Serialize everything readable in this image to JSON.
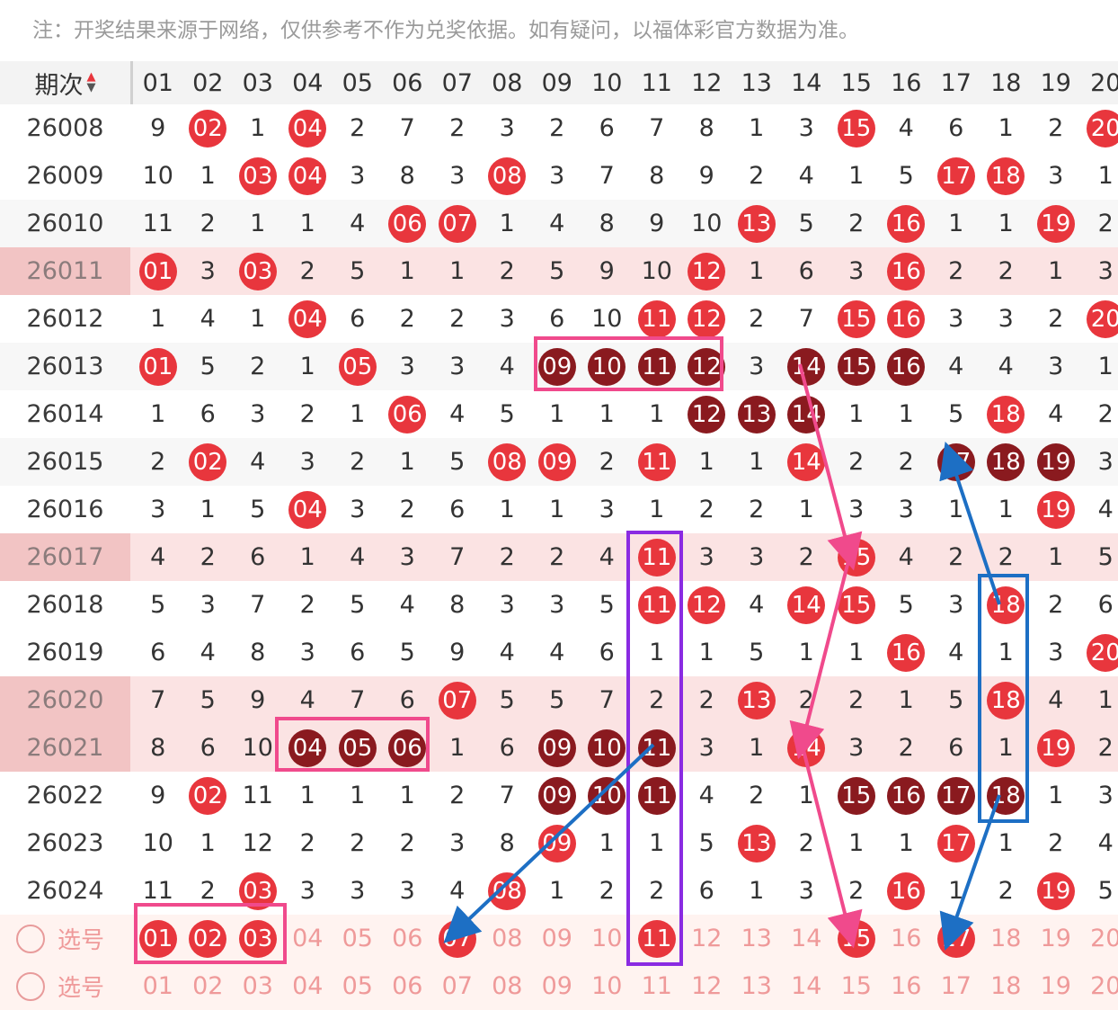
{
  "notice": "注：开奖结果来源于网络，仅供参考不作为兑奖依据。如有疑问，以福体彩官方数据为准。",
  "header": {
    "period_label": "期次",
    "sort_up": "▲",
    "sort_down": "▼",
    "columns": [
      "01",
      "02",
      "03",
      "04",
      "05",
      "06",
      "07",
      "08",
      "09",
      "10",
      "11",
      "12",
      "13",
      "14",
      "15",
      "16",
      "17",
      "18",
      "19",
      "20"
    ]
  },
  "rows": [
    {
      "period": "26008",
      "style": "white",
      "cells": [
        "9",
        "02*",
        "1",
        "04*",
        "2",
        "7",
        "2",
        "3",
        "2",
        "6",
        "7",
        "8",
        "1",
        "3",
        "15*",
        "4",
        "6",
        "1",
        "2",
        "20*"
      ]
    },
    {
      "period": "26009",
      "style": "white",
      "cells": [
        "10",
        "1",
        "03*",
        "04*",
        "3",
        "8",
        "3",
        "08*",
        "3",
        "7",
        "8",
        "9",
        "2",
        "4",
        "1",
        "5",
        "17*",
        "18*",
        "3",
        "1"
      ]
    },
    {
      "period": "26010",
      "style": "alt",
      "cells": [
        "11",
        "2",
        "1",
        "1",
        "4",
        "06*",
        "07*",
        "1",
        "4",
        "8",
        "9",
        "10",
        "13*",
        "5",
        "2",
        "16*",
        "1",
        "1",
        "19*",
        "2"
      ]
    },
    {
      "period": "26011",
      "style": "hl",
      "cells": [
        "01*",
        "3",
        "03*",
        "2",
        "5",
        "1",
        "1",
        "2",
        "5",
        "9",
        "10",
        "12*",
        "1",
        "6",
        "3",
        "16*",
        "2",
        "2",
        "1",
        "3"
      ]
    },
    {
      "period": "26012",
      "style": "white",
      "cells": [
        "1",
        "4",
        "1",
        "04*",
        "6",
        "2",
        "2",
        "3",
        "6",
        "10",
        "11*",
        "12*",
        "2",
        "7",
        "15*",
        "16*",
        "3",
        "3",
        "2",
        "20*"
      ]
    },
    {
      "period": "26013",
      "style": "alt",
      "cells": [
        "01*",
        "5",
        "2",
        "1",
        "05*",
        "3",
        "3",
        "4",
        "09#",
        "10#",
        "11#",
        "12#",
        "3",
        "14#",
        "15#",
        "16#",
        "4",
        "4",
        "3",
        "1"
      ]
    },
    {
      "period": "26014",
      "style": "white",
      "cells": [
        "1",
        "6",
        "3",
        "2",
        "1",
        "06*",
        "4",
        "5",
        "1",
        "1",
        "1",
        "12#",
        "13#",
        "14#",
        "1",
        "1",
        "5",
        "18*",
        "4",
        "2"
      ]
    },
    {
      "period": "26015",
      "style": "alt",
      "cells": [
        "2",
        "02*",
        "4",
        "3",
        "2",
        "1",
        "5",
        "08*",
        "09*",
        "2",
        "11*",
        "1",
        "1",
        "14*",
        "2",
        "2",
        "17#",
        "18#",
        "19#",
        "3"
      ]
    },
    {
      "period": "26016",
      "style": "white",
      "cells": [
        "3",
        "1",
        "5",
        "04*",
        "3",
        "2",
        "6",
        "1",
        "1",
        "3",
        "1",
        "2",
        "2",
        "1",
        "3",
        "3",
        "1",
        "1",
        "19*",
        "4"
      ]
    },
    {
      "period": "26017",
      "style": "hl",
      "cells": [
        "4",
        "2",
        "6",
        "1",
        "4",
        "3",
        "7",
        "2",
        "2",
        "4",
        "11*",
        "3",
        "3",
        "2",
        "15*",
        "4",
        "2",
        "2",
        "1",
        "5"
      ]
    },
    {
      "period": "26018",
      "style": "white",
      "cells": [
        "5",
        "3",
        "7",
        "2",
        "5",
        "4",
        "8",
        "3",
        "3",
        "5",
        "11*",
        "12*",
        "4",
        "14*",
        "15*",
        "5",
        "3",
        "18*",
        "2",
        "6"
      ]
    },
    {
      "period": "26019",
      "style": "white",
      "cells": [
        "6",
        "4",
        "8",
        "3",
        "6",
        "5",
        "9",
        "4",
        "4",
        "6",
        "1",
        "1",
        "5",
        "1",
        "1",
        "16*",
        "4",
        "1",
        "3",
        "20*"
      ]
    },
    {
      "period": "26020",
      "style": "hl",
      "cells": [
        "7",
        "5",
        "9",
        "4",
        "7",
        "6",
        "07*",
        "5",
        "5",
        "7",
        "2",
        "2",
        "13*",
        "2",
        "2",
        "1",
        "5",
        "18*",
        "4",
        "1"
      ]
    },
    {
      "period": "26021",
      "style": "hl",
      "cells": [
        "8",
        "6",
        "10",
        "04#",
        "05#",
        "06#",
        "1",
        "6",
        "09#",
        "10#",
        "11#",
        "3",
        "1",
        "14*",
        "3",
        "2",
        "6",
        "1",
        "19*",
        "2"
      ]
    },
    {
      "period": "26022",
      "style": "white",
      "cells": [
        "9",
        "02*",
        "11",
        "1",
        "1",
        "1",
        "2",
        "7",
        "09#",
        "10#",
        "11#",
        "4",
        "2",
        "1",
        "15#",
        "16#",
        "17#",
        "18#",
        "1",
        "3"
      ]
    },
    {
      "period": "26023",
      "style": "white",
      "cells": [
        "10",
        "1",
        "12",
        "2",
        "2",
        "2",
        "3",
        "8",
        "09*",
        "1",
        "1",
        "5",
        "13*",
        "2",
        "1",
        "1",
        "17*",
        "1",
        "2",
        "4"
      ]
    },
    {
      "period": "26024",
      "style": "white",
      "cells": [
        "11",
        "2",
        "03*",
        "3",
        "3",
        "3",
        "4",
        "08*",
        "1",
        "2",
        "2",
        "6",
        "1",
        "3",
        "2",
        "16*",
        "1",
        "2",
        "19*",
        "5"
      ]
    },
    {
      "period": "选号",
      "style": "sel",
      "cells": [
        "01*",
        "02*",
        "03*",
        "04",
        "05",
        "06",
        "07*",
        "08",
        "09",
        "10",
        "11*",
        "12",
        "13",
        "14",
        "15*",
        "16",
        "17*",
        "18",
        "19",
        "20"
      ]
    },
    {
      "period": "选号",
      "style": "sel",
      "cells": [
        "01",
        "02",
        "03",
        "04",
        "05",
        "06",
        "07",
        "08",
        "09",
        "10",
        "11",
        "12",
        "13",
        "14",
        "15",
        "16",
        "17",
        "18",
        "19",
        "20"
      ]
    }
  ],
  "annotation_colors": {
    "pink": "#f04a8c",
    "blue": "#1d6fc4",
    "purple": "#8a2be2"
  }
}
